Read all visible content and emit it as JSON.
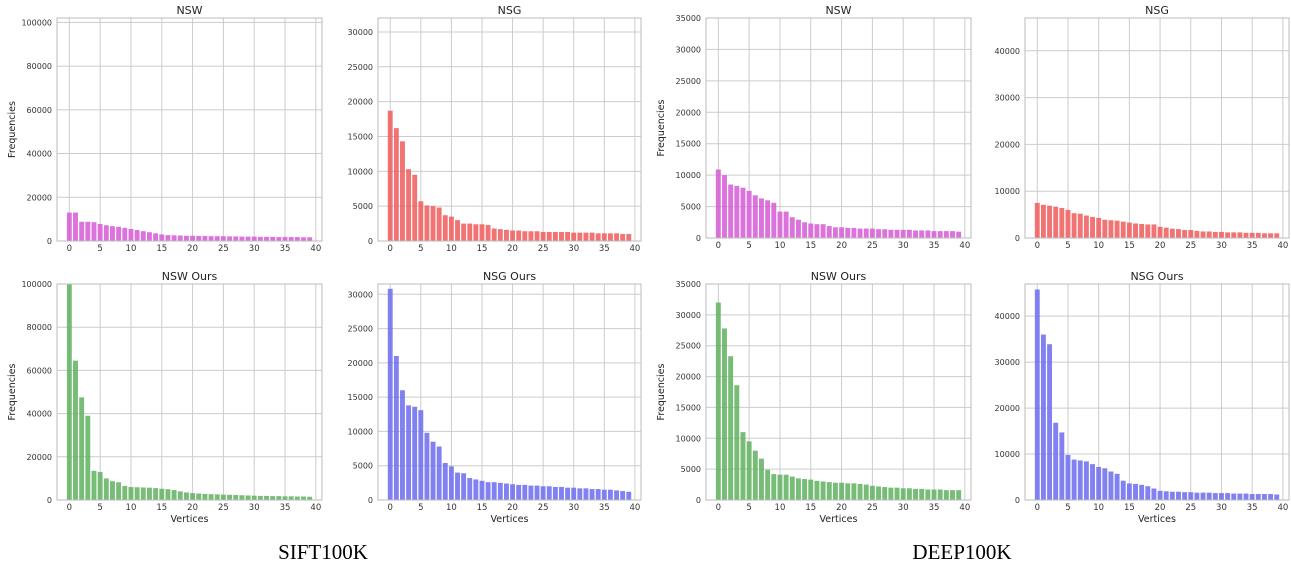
{
  "captions": {
    "left": "SIFT100K",
    "right": "DEEP100K"
  },
  "chart_data": [
    {
      "type": "bar",
      "title": "NSW",
      "ylabel": "Frequencies",
      "xlabel": "",
      "group": "SIFT100K",
      "color": "#d65ad6",
      "xlim": [
        -2,
        41
      ],
      "ylim": [
        0,
        102000
      ],
      "xticks": [
        0,
        5,
        10,
        15,
        20,
        25,
        30,
        35,
        40
      ],
      "yticks": [
        0,
        20000,
        40000,
        60000,
        80000,
        100000
      ],
      "x": [
        0,
        1,
        2,
        3,
        4,
        5,
        6,
        7,
        8,
        9,
        10,
        11,
        12,
        13,
        14,
        15,
        16,
        17,
        18,
        19,
        20,
        21,
        22,
        23,
        24,
        25,
        26,
        27,
        28,
        29,
        30,
        31,
        32,
        33,
        34,
        35,
        36,
        37,
        38,
        39
      ],
      "values": [
        13000,
        13000,
        8800,
        8800,
        8600,
        7800,
        7200,
        6800,
        6500,
        6000,
        5500,
        5000,
        4500,
        4000,
        3500,
        3000,
        2700,
        2600,
        2500,
        2400,
        2400,
        2300,
        2300,
        2200,
        2200,
        2200,
        2100,
        2100,
        2000,
        2000,
        2000,
        1900,
        1900,
        1900,
        1800,
        1800,
        1800,
        1800,
        1700,
        1700
      ]
    },
    {
      "type": "bar",
      "title": "NSG",
      "ylabel": "",
      "xlabel": "",
      "group": "SIFT100K",
      "color": "#f05a5a",
      "xlim": [
        -2,
        41
      ],
      "ylim": [
        0,
        32000
      ],
      "xticks": [
        0,
        5,
        10,
        15,
        20,
        25,
        30,
        35,
        40
      ],
      "yticks": [
        0,
        5000,
        10000,
        15000,
        20000,
        25000,
        30000
      ],
      "x": [
        0,
        1,
        2,
        3,
        4,
        5,
        6,
        7,
        8,
        9,
        10,
        11,
        12,
        13,
        14,
        15,
        16,
        17,
        18,
        19,
        20,
        21,
        22,
        23,
        24,
        25,
        26,
        27,
        28,
        29,
        30,
        31,
        32,
        33,
        34,
        35,
        36,
        37,
        38,
        39
      ],
      "values": [
        18700,
        16200,
        14300,
        10300,
        9500,
        5700,
        5100,
        5000,
        4800,
        3700,
        3500,
        3000,
        2500,
        2500,
        2400,
        2400,
        2300,
        1800,
        1700,
        1600,
        1500,
        1500,
        1400,
        1400,
        1400,
        1300,
        1300,
        1300,
        1300,
        1300,
        1200,
        1200,
        1200,
        1200,
        1100,
        1100,
        1100,
        1100,
        1000,
        1000
      ]
    },
    {
      "type": "bar",
      "title": "NSW",
      "ylabel": "Frequencies",
      "xlabel": "",
      "group": "DEEP100K",
      "color": "#d65ad6",
      "xlim": [
        -2,
        41
      ],
      "ylim": [
        0,
        35000
      ],
      "xticks": [
        0,
        5,
        10,
        15,
        20,
        25,
        30,
        35,
        40
      ],
      "yticks": [
        0,
        5000,
        10000,
        15000,
        20000,
        25000,
        30000,
        35000
      ],
      "x": [
        0,
        1,
        2,
        3,
        4,
        5,
        6,
        7,
        8,
        9,
        10,
        11,
        12,
        13,
        14,
        15,
        16,
        17,
        18,
        19,
        20,
        21,
        22,
        23,
        24,
        25,
        26,
        27,
        28,
        29,
        30,
        31,
        32,
        33,
        34,
        35,
        36,
        37,
        38,
        39
      ],
      "values": [
        10900,
        10000,
        8500,
        8300,
        8000,
        7500,
        6800,
        6300,
        6000,
        5600,
        4200,
        4200,
        3300,
        2900,
        2500,
        2300,
        2200,
        2200,
        1900,
        1700,
        1700,
        1600,
        1600,
        1500,
        1500,
        1500,
        1400,
        1400,
        1300,
        1300,
        1300,
        1300,
        1200,
        1200,
        1200,
        1100,
        1100,
        1100,
        1100,
        1000
      ]
    },
    {
      "type": "bar",
      "title": "NSG",
      "ylabel": "",
      "xlabel": "",
      "group": "DEEP100K",
      "color": "#f05a5a",
      "xlim": [
        -2,
        41
      ],
      "ylim": [
        0,
        47000
      ],
      "xticks": [
        0,
        5,
        10,
        15,
        20,
        25,
        30,
        35,
        40
      ],
      "yticks": [
        0,
        10000,
        20000,
        30000,
        40000
      ],
      "x": [
        0,
        1,
        2,
        3,
        4,
        5,
        6,
        7,
        8,
        9,
        10,
        11,
        12,
        13,
        14,
        15,
        16,
        17,
        18,
        19,
        20,
        21,
        22,
        23,
        24,
        25,
        26,
        27,
        28,
        29,
        30,
        31,
        32,
        33,
        34,
        35,
        36,
        37,
        38,
        39
      ],
      "values": [
        7500,
        7100,
        6900,
        6700,
        6400,
        6000,
        5300,
        5200,
        4800,
        4500,
        4300,
        3900,
        3800,
        3700,
        3500,
        3300,
        3100,
        3000,
        2900,
        2900,
        2400,
        2200,
        2000,
        1900,
        1700,
        1700,
        1500,
        1400,
        1400,
        1300,
        1300,
        1200,
        1200,
        1200,
        1100,
        1100,
        1100,
        1000,
        1000,
        1000
      ]
    },
    {
      "type": "bar",
      "title": "NSW Ours",
      "ylabel": "Frequencies",
      "xlabel": "Vertices",
      "group": "SIFT100K",
      "color": "#5fb05f",
      "xlim": [
        -2,
        41
      ],
      "ylim": [
        0,
        100000
      ],
      "xticks": [
        0,
        5,
        10,
        15,
        20,
        25,
        30,
        35,
        40
      ],
      "yticks": [
        0,
        20000,
        40000,
        60000,
        80000,
        100000
      ],
      "x": [
        0,
        1,
        2,
        3,
        4,
        5,
        6,
        7,
        8,
        9,
        10,
        11,
        12,
        13,
        14,
        15,
        16,
        17,
        18,
        19,
        20,
        21,
        22,
        23,
        24,
        25,
        26,
        27,
        28,
        29,
        30,
        31,
        32,
        33,
        34,
        35,
        36,
        37,
        38,
        39
      ],
      "values": [
        100000,
        64500,
        47500,
        39000,
        13500,
        13000,
        10000,
        8700,
        8200,
        6500,
        6000,
        5900,
        5800,
        5700,
        5500,
        5200,
        5000,
        4600,
        4000,
        3500,
        3200,
        3000,
        2800,
        2700,
        2600,
        2500,
        2400,
        2300,
        2200,
        2100,
        2000,
        1900,
        1900,
        1800,
        1800,
        1700,
        1700,
        1600,
        1600,
        1500
      ]
    },
    {
      "type": "bar",
      "title": "NSG Ours",
      "ylabel": "",
      "xlabel": "Vertices",
      "group": "SIFT100K",
      "color": "#6b6bf0",
      "xlim": [
        -2,
        41
      ],
      "ylim": [
        0,
        31500
      ],
      "xticks": [
        0,
        5,
        10,
        15,
        20,
        25,
        30,
        35,
        40
      ],
      "yticks": [
        0,
        5000,
        10000,
        15000,
        20000,
        25000,
        30000
      ],
      "x": [
        0,
        1,
        2,
        3,
        4,
        5,
        6,
        7,
        8,
        9,
        10,
        11,
        12,
        13,
        14,
        15,
        16,
        17,
        18,
        19,
        20,
        21,
        22,
        23,
        24,
        25,
        26,
        27,
        28,
        29,
        30,
        31,
        32,
        33,
        34,
        35,
        36,
        37,
        38,
        39
      ],
      "values": [
        30800,
        21000,
        16000,
        13800,
        13600,
        13100,
        9800,
        8500,
        7800,
        5400,
        4900,
        4000,
        3900,
        3200,
        3000,
        2800,
        2600,
        2600,
        2500,
        2400,
        2300,
        2200,
        2200,
        2100,
        2100,
        2000,
        2000,
        1900,
        1900,
        1800,
        1800,
        1700,
        1700,
        1600,
        1600,
        1500,
        1500,
        1400,
        1300,
        1200
      ]
    },
    {
      "type": "bar",
      "title": "NSW Ours",
      "ylabel": "Frequencies",
      "xlabel": "Vertices",
      "group": "DEEP100K",
      "color": "#5fb05f",
      "xlim": [
        -2,
        41
      ],
      "ylim": [
        0,
        35000
      ],
      "xticks": [
        0,
        5,
        10,
        15,
        20,
        25,
        30,
        35,
        40
      ],
      "yticks": [
        0,
        5000,
        10000,
        15000,
        20000,
        25000,
        30000,
        35000
      ],
      "x": [
        0,
        1,
        2,
        3,
        4,
        5,
        6,
        7,
        8,
        9,
        10,
        11,
        12,
        13,
        14,
        15,
        16,
        17,
        18,
        19,
        20,
        21,
        22,
        23,
        24,
        25,
        26,
        27,
        28,
        29,
        30,
        31,
        32,
        33,
        34,
        35,
        36,
        37,
        38,
        39
      ],
      "values": [
        32000,
        27800,
        23300,
        18600,
        11000,
        9500,
        8000,
        6700,
        4900,
        4200,
        4100,
        4100,
        3800,
        3500,
        3400,
        3300,
        3100,
        3000,
        2900,
        2800,
        2800,
        2700,
        2700,
        2600,
        2500,
        2300,
        2200,
        2100,
        2000,
        2000,
        1900,
        1900,
        1800,
        1800,
        1700,
        1700,
        1700,
        1600,
        1600,
        1600
      ]
    },
    {
      "type": "bar",
      "title": "NSG Ours",
      "ylabel": "",
      "xlabel": "Vertices",
      "group": "DEEP100K",
      "color": "#6b6bf0",
      "xlim": [
        -2,
        41
      ],
      "ylim": [
        0,
        47000
      ],
      "xticks": [
        0,
        5,
        10,
        15,
        20,
        25,
        30,
        35,
        40
      ],
      "yticks": [
        0,
        10000,
        20000,
        30000,
        40000
      ],
      "x": [
        0,
        1,
        2,
        3,
        4,
        5,
        6,
        7,
        8,
        9,
        10,
        11,
        12,
        13,
        14,
        15,
        16,
        17,
        18,
        19,
        20,
        21,
        22,
        23,
        24,
        25,
        26,
        27,
        28,
        29,
        30,
        31,
        32,
        33,
        34,
        35,
        36,
        37,
        38,
        39
      ],
      "values": [
        45800,
        36000,
        33900,
        16800,
        14700,
        9800,
        8800,
        8600,
        8400,
        7800,
        7200,
        6900,
        6200,
        5700,
        4200,
        3600,
        3500,
        3300,
        3000,
        2500,
        2000,
        1900,
        1800,
        1800,
        1700,
        1700,
        1600,
        1600,
        1600,
        1500,
        1500,
        1500,
        1400,
        1400,
        1400,
        1300,
        1300,
        1300,
        1300,
        1200
      ]
    }
  ]
}
